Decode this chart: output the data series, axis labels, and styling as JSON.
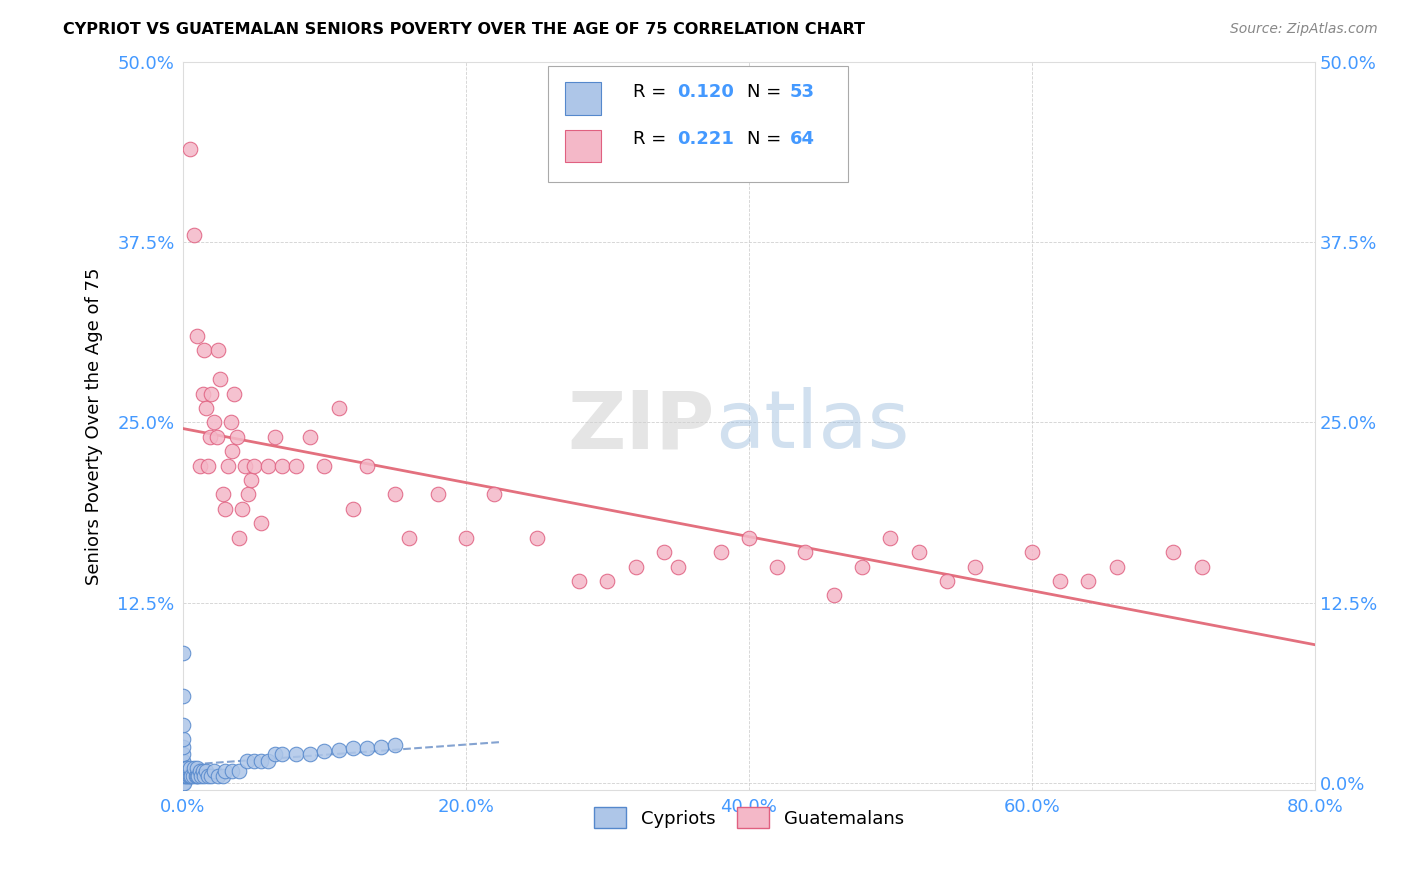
{
  "title": "CYPRIOT VS GUATEMALAN SENIORS POVERTY OVER THE AGE OF 75 CORRELATION CHART",
  "source": "Source: ZipAtlas.com",
  "xlabel_ticks": [
    "0.0%",
    "20.0%",
    "40.0%",
    "60.0%",
    "80.0%"
  ],
  "ylabel_ticks_left": [
    "",
    "12.5%",
    "25.0%",
    "37.5%",
    "50.0%"
  ],
  "ylabel_ticks_right": [
    "0.0%",
    "12.5%",
    "25.0%",
    "37.5%",
    "50.0%"
  ],
  "xlim": [
    0.0,
    0.8
  ],
  "ylim": [
    -0.005,
    0.5
  ],
  "cypriot_R": 0.12,
  "cypriot_N": 53,
  "guatemalan_R": 0.221,
  "guatemalan_N": 64,
  "cypriot_color": "#aec6e8",
  "guatemalan_color": "#f4b8c8",
  "cypriot_edge_color": "#5588cc",
  "guatemalan_edge_color": "#e06080",
  "cypriot_line_color": "#7799cc",
  "guatemalan_line_color": "#e06070",
  "tick_color": "#4499ff",
  "watermark_zip_color": "#d0d0d0",
  "watermark_atlas_color": "#99bbdd",
  "cypriot_x": [
    0.0,
    0.0,
    0.0,
    0.0,
    0.0,
    0.0,
    0.0,
    0.0,
    0.0,
    0.0,
    0.001,
    0.001,
    0.002,
    0.002,
    0.003,
    0.003,
    0.004,
    0.005,
    0.005,
    0.006,
    0.007,
    0.008,
    0.009,
    0.01,
    0.01,
    0.011,
    0.012,
    0.013,
    0.014,
    0.015,
    0.016,
    0.018,
    0.02,
    0.022,
    0.025,
    0.028,
    0.03,
    0.035,
    0.04,
    0.045,
    0.05,
    0.055,
    0.06,
    0.065,
    0.07,
    0.08,
    0.09,
    0.1,
    0.11,
    0.12,
    0.13,
    0.14,
    0.15
  ],
  "cypriot_y": [
    0.0,
    0.005,
    0.01,
    0.015,
    0.02,
    0.025,
    0.03,
    0.04,
    0.06,
    0.09,
    0.0,
    0.005,
    0.005,
    0.01,
    0.005,
    0.01,
    0.005,
    0.005,
    0.01,
    0.005,
    0.005,
    0.01,
    0.005,
    0.005,
    0.01,
    0.005,
    0.008,
    0.005,
    0.008,
    0.005,
    0.008,
    0.005,
    0.005,
    0.008,
    0.005,
    0.005,
    0.008,
    0.008,
    0.008,
    0.015,
    0.015,
    0.015,
    0.015,
    0.02,
    0.02,
    0.02,
    0.02,
    0.022,
    0.023,
    0.024,
    0.024,
    0.025,
    0.026
  ],
  "guatemalan_x": [
    0.005,
    0.008,
    0.01,
    0.012,
    0.014,
    0.015,
    0.016,
    0.018,
    0.019,
    0.02,
    0.022,
    0.024,
    0.025,
    0.026,
    0.028,
    0.03,
    0.032,
    0.034,
    0.035,
    0.036,
    0.038,
    0.04,
    0.042,
    0.044,
    0.046,
    0.048,
    0.05,
    0.055,
    0.06,
    0.065,
    0.07,
    0.08,
    0.09,
    0.1,
    0.11,
    0.12,
    0.13,
    0.15,
    0.16,
    0.18,
    0.2,
    0.22,
    0.25,
    0.28,
    0.3,
    0.32,
    0.34,
    0.35,
    0.38,
    0.4,
    0.42,
    0.44,
    0.46,
    0.48,
    0.5,
    0.52,
    0.54,
    0.56,
    0.6,
    0.62,
    0.64,
    0.66,
    0.7,
    0.72
  ],
  "guatemalan_y": [
    0.44,
    0.38,
    0.31,
    0.22,
    0.27,
    0.3,
    0.26,
    0.22,
    0.24,
    0.27,
    0.25,
    0.24,
    0.3,
    0.28,
    0.2,
    0.19,
    0.22,
    0.25,
    0.23,
    0.27,
    0.24,
    0.17,
    0.19,
    0.22,
    0.2,
    0.21,
    0.22,
    0.18,
    0.22,
    0.24,
    0.22,
    0.22,
    0.24,
    0.22,
    0.26,
    0.19,
    0.22,
    0.2,
    0.17,
    0.2,
    0.17,
    0.2,
    0.17,
    0.14,
    0.14,
    0.15,
    0.16,
    0.15,
    0.16,
    0.17,
    0.15,
    0.16,
    0.13,
    0.15,
    0.17,
    0.16,
    0.14,
    0.15,
    0.16,
    0.14,
    0.14,
    0.15,
    0.16,
    0.15
  ]
}
